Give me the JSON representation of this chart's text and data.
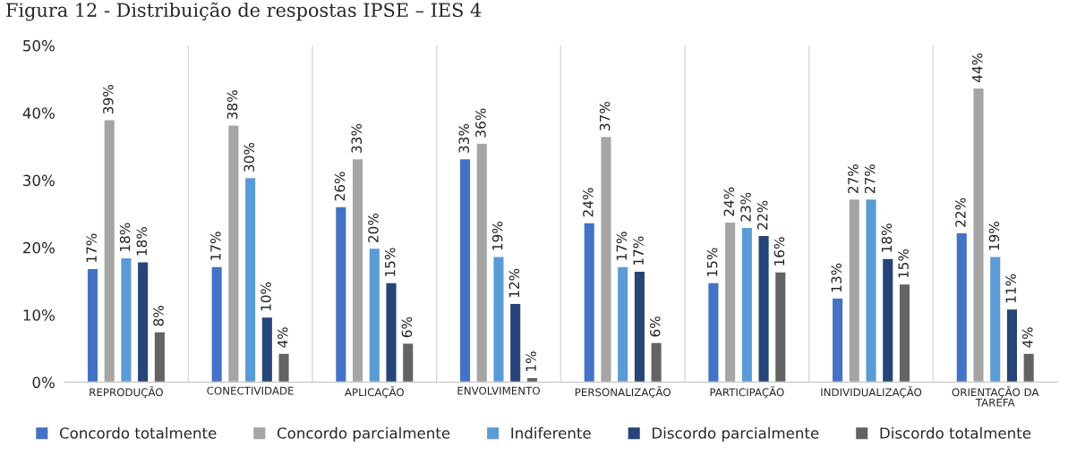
{
  "chart_data": {
    "type": "bar",
    "title": "Figura 12 - Distribuição de respostas IPSE – IES 4",
    "categories": [
      "REPRODUÇÃO",
      "CONECTIVIDADE",
      "APLICAÇÃO",
      "ENVOLVIMENTO",
      "PERSONALIZAÇÃO",
      "PARTICIPAÇÃO",
      "INDIVIDUALIZAÇÃO",
      "ORIENTAÇÃO DA\nTAREFA"
    ],
    "series": [
      {
        "name": "Concordo totalmente",
        "color": "#4472c4",
        "values": [
          16.9,
          17.2,
          26.1,
          33.2,
          23.7,
          14.8,
          12.5,
          22.2
        ],
        "value_labels": [
          "17%",
          "17%",
          "26%",
          "33%",
          "24%",
          "15%",
          "13%",
          "22%"
        ]
      },
      {
        "name": "Concordo parcialmente",
        "color": "#a5a5a5",
        "values": [
          39.0,
          38.2,
          33.2,
          35.5,
          36.5,
          23.8,
          27.2,
          43.7
        ],
        "value_labels": [
          "39%",
          "38%",
          "33%",
          "36%",
          "37%",
          "24%",
          "27%",
          "44%"
        ]
      },
      {
        "name": "Indiferente",
        "color": "#5b9bd5",
        "values": [
          18.5,
          30.4,
          19.9,
          18.7,
          17.2,
          23.0,
          27.2,
          18.7
        ],
        "value_labels": [
          "18%",
          "30%",
          "20%",
          "19%",
          "17%",
          "23%",
          "27%",
          "19%"
        ]
      },
      {
        "name": "Discordo parcialmente",
        "color": "#264478",
        "values": [
          17.9,
          9.7,
          14.8,
          11.7,
          16.5,
          21.8,
          18.4,
          10.9
        ],
        "value_labels": [
          "18%",
          "10%",
          "15%",
          "12%",
          "17%",
          "22%",
          "18%",
          "11%"
        ]
      },
      {
        "name": "Discordo totalmente",
        "color": "#636363",
        "values": [
          7.5,
          4.3,
          5.8,
          0.7,
          5.9,
          16.4,
          14.6,
          4.3
        ],
        "value_labels": [
          "8%",
          "4%",
          "6%",
          "1%",
          "6%",
          "16%",
          "15%",
          "4%"
        ]
      }
    ],
    "ylim": [
      0,
      50
    ],
    "yticks": [
      {
        "value": 0,
        "label": "0%"
      },
      {
        "value": 10,
        "label": "10%"
      },
      {
        "value": 20,
        "label": "20%"
      },
      {
        "value": 30,
        "label": "30%"
      },
      {
        "value": 40,
        "label": "40%"
      },
      {
        "value": 50,
        "label": "50%"
      }
    ],
    "grid": "x",
    "legend": "bottom"
  }
}
